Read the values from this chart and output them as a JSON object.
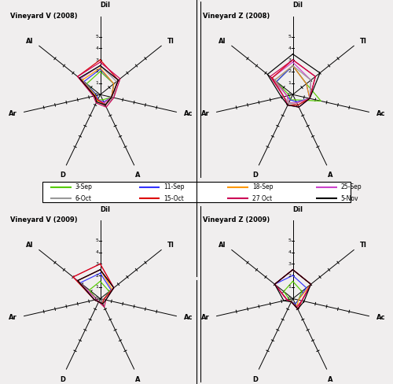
{
  "categories": [
    "Dil",
    "TI",
    "Ac",
    "A",
    "D",
    "Ar",
    "AI"
  ],
  "n_cats": 7,
  "charts": [
    {
      "title": "Vineyard V (2008)",
      "series": [
        {
          "label": "3-Sep",
          "color": "#55cc00",
          "values": [
            2.0,
            1.5,
            1.0,
            0.5,
            0.5,
            0.3,
            1.5
          ]
        },
        {
          "label": "11-Sep",
          "color": "#3333ff",
          "values": [
            2.2,
            1.5,
            1.0,
            0.7,
            0.5,
            0.3,
            1.8
          ]
        },
        {
          "label": "18-Sep",
          "color": "#ff9900",
          "values": [
            2.3,
            1.5,
            1.0,
            0.8,
            0.6,
            0.4,
            2.0
          ]
        },
        {
          "label": "25-Sep",
          "color": "#cc44cc",
          "values": [
            2.5,
            2.0,
            1.0,
            0.8,
            0.5,
            0.5,
            2.2
          ]
        },
        {
          "label": "6-Oct",
          "color": "#999999",
          "values": [
            2.5,
            1.8,
            1.2,
            1.0,
            0.7,
            0.5,
            2.3
          ]
        },
        {
          "label": "15-Oct",
          "color": "#dd0000",
          "values": [
            3.0,
            2.0,
            1.0,
            1.0,
            0.5,
            0.5,
            2.5
          ]
        },
        {
          "label": "27 Oct",
          "color": "#cc0055",
          "values": [
            2.8,
            2.2,
            1.2,
            1.2,
            0.8,
            0.6,
            2.5
          ]
        },
        {
          "label": "5-Nov",
          "color": "#000000",
          "values": [
            2.5,
            2.0,
            1.0,
            1.0,
            0.7,
            0.5,
            2.3
          ]
        }
      ]
    },
    {
      "title": "Vineyard Z (2008)",
      "series": [
        {
          "label": "3-Sep",
          "color": "#55cc00",
          "values": [
            2.5,
            1.5,
            2.5,
            0.5,
            0.5,
            0.3,
            1.8
          ]
        },
        {
          "label": "11-Sep",
          "color": "#3333ff",
          "values": [
            2.5,
            1.5,
            1.5,
            0.7,
            0.5,
            0.5,
            1.8
          ]
        },
        {
          "label": "18-Sep",
          "color": "#ff9900",
          "values": [
            2.5,
            1.5,
            1.5,
            0.8,
            0.8,
            0.5,
            2.0
          ]
        },
        {
          "label": "25-Sep",
          "color": "#cc44cc",
          "values": [
            2.8,
            2.0,
            1.5,
            0.8,
            0.8,
            0.5,
            2.3
          ]
        },
        {
          "label": "6-Oct",
          "color": "#999999",
          "values": [
            2.5,
            2.0,
            1.5,
            1.0,
            0.8,
            0.8,
            2.0
          ]
        },
        {
          "label": "15-Oct",
          "color": "#dd0000",
          "values": [
            3.0,
            2.5,
            1.5,
            1.0,
            1.0,
            0.8,
            2.3
          ]
        },
        {
          "label": "27 Oct",
          "color": "#cc0055",
          "values": [
            3.0,
            2.5,
            1.5,
            1.2,
            1.0,
            0.8,
            2.5
          ]
        },
        {
          "label": "5-Nov",
          "color": "#000000",
          "values": [
            3.5,
            3.0,
            1.5,
            1.2,
            1.0,
            1.0,
            2.8
          ]
        }
      ]
    },
    {
      "title": "Vineyard V (2009)",
      "series": [
        {
          "label": "3-Sep",
          "color": "#55cc00",
          "values": [
            1.5,
            1.0,
            0.3,
            0.3,
            0.3,
            0.3,
            1.2
          ]
        },
        {
          "label": "11-Sep",
          "color": "#3333ff",
          "values": [
            2.2,
            1.2,
            0.3,
            0.3,
            0.3,
            0.3,
            2.2
          ]
        },
        {
          "label": "18-Sep",
          "color": "#ff9900",
          "values": [
            2.5,
            1.3,
            0.3,
            0.3,
            0.3,
            0.3,
            2.5
          ]
        },
        {
          "label": "25-Sep",
          "color": "#cc44cc",
          "values": [
            3.0,
            1.5,
            0.3,
            0.3,
            0.3,
            0.3,
            3.0
          ]
        },
        {
          "label": "6-Oct",
          "color": "#999999",
          "values": [
            2.5,
            1.5,
            0.3,
            0.3,
            0.3,
            0.5,
            2.5
          ]
        },
        {
          "label": "15-Oct",
          "color": "#dd0000",
          "values": [
            3.0,
            1.5,
            0.3,
            0.5,
            0.3,
            0.5,
            3.0
          ]
        },
        {
          "label": "27 Oct",
          "color": "#cc0055",
          "values": [
            2.5,
            1.5,
            0.5,
            0.8,
            0.3,
            0.5,
            2.5
          ]
        },
        {
          "label": "5-Nov",
          "color": "#000000",
          "values": [
            2.5,
            1.5,
            0.5,
            0.5,
            0.3,
            0.5,
            2.5
          ]
        }
      ]
    },
    {
      "title": "Vineyard Z (2009)",
      "series": [
        {
          "label": "3-Sep",
          "color": "#55cc00",
          "values": [
            1.5,
            1.0,
            0.5,
            0.5,
            0.3,
            0.3,
            1.0
          ]
        },
        {
          "label": "11-Sep",
          "color": "#3333ff",
          "values": [
            2.0,
            1.5,
            0.5,
            0.5,
            0.3,
            0.5,
            2.0
          ]
        },
        {
          "label": "18-Sep",
          "color": "#ff9900",
          "values": [
            2.5,
            2.0,
            0.5,
            0.8,
            0.3,
            0.5,
            2.0
          ]
        },
        {
          "label": "25-Sep",
          "color": "#cc44cc",
          "values": [
            2.5,
            2.0,
            0.8,
            1.0,
            0.3,
            0.5,
            2.0
          ]
        },
        {
          "label": "6-Oct",
          "color": "#999999",
          "values": [
            2.5,
            2.0,
            0.8,
            0.8,
            0.3,
            0.5,
            2.0
          ]
        },
        {
          "label": "15-Oct",
          "color": "#dd0000",
          "values": [
            2.5,
            2.0,
            0.8,
            1.0,
            0.3,
            0.5,
            2.0
          ]
        },
        {
          "label": "27 Oct",
          "color": "#cc0055",
          "values": [
            2.5,
            2.0,
            0.8,
            0.8,
            0.3,
            0.5,
            2.0
          ]
        },
        {
          "label": "5-Nov",
          "color": "#000000",
          "values": [
            2.5,
            2.0,
            1.0,
            1.0,
            0.3,
            0.8,
            2.0
          ]
        }
      ]
    }
  ],
  "legend_entries": [
    {
      "label": "3-Sep",
      "color": "#55cc00"
    },
    {
      "label": "11-Sep",
      "color": "#3333ff"
    },
    {
      "label": "18-Sep",
      "color": "#ff9900"
    },
    {
      "label": "25-Sep",
      "color": "#cc44cc"
    },
    {
      "label": "6-Oct",
      "color": "#999999"
    },
    {
      "label": "15-Oct",
      "color": "#dd0000"
    },
    {
      "label": "27 Oct",
      "color": "#cc0055"
    },
    {
      "label": "5-Nov",
      "color": "#000000"
    }
  ],
  "r_max": 5,
  "r_ticks": [
    0,
    1,
    2,
    3,
    4,
    5
  ],
  "background_color": "#f0eeee"
}
